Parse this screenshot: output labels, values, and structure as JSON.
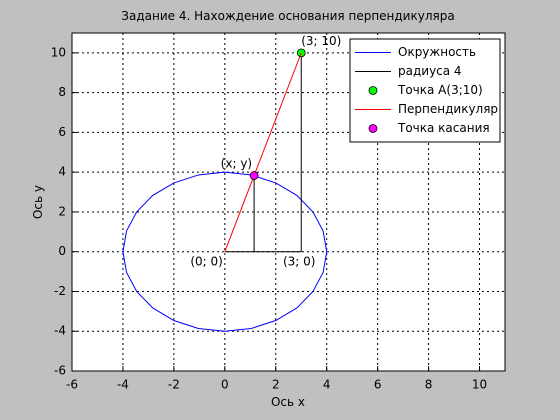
{
  "chart_data": {
    "type": "line",
    "title": "Задание 4. Нахождение основания перпендикуляра",
    "xlabel": "Ось x",
    "ylabel": "Ось y",
    "xlim": [
      -6,
      11
    ],
    "ylim": [
      -6,
      11
    ],
    "xticks": [
      -6,
      -4,
      -2,
      0,
      2,
      4,
      6,
      8,
      10
    ],
    "yticks": [
      -6,
      -4,
      -2,
      0,
      2,
      4,
      6,
      8,
      10
    ],
    "grid": true,
    "legend": "upper right",
    "series": [
      {
        "name": "Окружность",
        "color": "#0000ff",
        "mode": "line",
        "x": [
          4,
          3.86,
          3.46,
          2.83,
          2,
          1.04,
          0,
          -1.04,
          -2,
          -2.83,
          -3.46,
          -3.86,
          -4,
          -3.86,
          -3.46,
          -2.83,
          -2,
          -1.04,
          0,
          1.04,
          2,
          2.83,
          3.46,
          3.86,
          4
        ],
        "values": [
          0,
          1.04,
          2,
          2.83,
          3.46,
          3.86,
          4,
          3.86,
          3.46,
          2.83,
          2,
          1.04,
          0,
          -1.04,
          -2,
          -2.83,
          -3.46,
          -3.86,
          -4,
          -3.86,
          -3.46,
          -2.83,
          -2,
          -1.04,
          0
        ]
      },
      {
        "name": "радиуса 4",
        "color": "#000000",
        "mode": "line",
        "x": [
          3,
          3,
          0,
          null,
          1.15,
          1.15
        ],
        "values": [
          10,
          0,
          0,
          null,
          3.83,
          0
        ]
      },
      {
        "name": "Точка А(3;10)",
        "color": "#00ff00",
        "mode": "marker",
        "x": [
          3
        ],
        "values": [
          10
        ]
      },
      {
        "name": "Перпендикуляр",
        "color": "#ff0000",
        "mode": "line",
        "x": [
          0,
          3
        ],
        "values": [
          0,
          10
        ]
      },
      {
        "name": "Точка касания",
        "color": "#ff00ff",
        "mode": "marker",
        "x": [
          1.15
        ],
        "values": [
          3.83
        ]
      }
    ],
    "annotations": [
      {
        "text": "(3; 10)",
        "x": 3,
        "y": 10
      },
      {
        "text": "(x; y)",
        "x": 1.15,
        "y": 3.83
      },
      {
        "text": "(0; 0)",
        "x": 0,
        "y": 0
      },
      {
        "text": "(3; 0)",
        "x": 3,
        "y": 0
      }
    ]
  }
}
